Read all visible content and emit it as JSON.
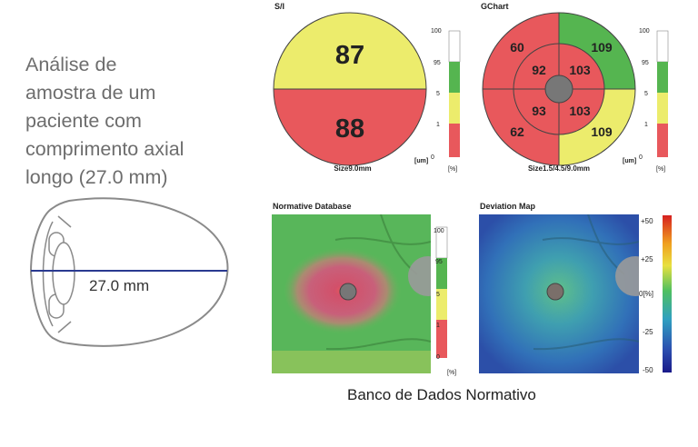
{
  "description": {
    "lines": [
      "Análise de",
      "amostra de um",
      "paciente com",
      "comprimento axial",
      "longo (27.0 mm)"
    ]
  },
  "eye_diagram": {
    "axial_length_label": "27.0 mm"
  },
  "si_panel": {
    "title": "S/I",
    "superior_value": "87",
    "inferior_value": "88",
    "size_label": "Size9.0mm",
    "superior_color": "#ecec6c",
    "inferior_color": "#e8585c"
  },
  "gchart_panel": {
    "title": "GChart",
    "outer_top_left": "60",
    "outer_top_right": "109",
    "outer_bottom_left": "62",
    "outer_bottom_right": "109",
    "inner_top_left": "92",
    "inner_top_right": "103",
    "inner_bottom_left": "93",
    "inner_bottom_right": "103",
    "size_label": "Size1.5/4.5/9.0mm"
  },
  "scale_bar": {
    "tick_labels": [
      "100",
      "95",
      "5",
      "1",
      "0"
    ],
    "unit_um": "[um]",
    "unit_um_zero": "0",
    "unit_percent": "[%]",
    "colors": {
      "white": "#ffffff",
      "green": "#55b550",
      "yellow": "#ecec6c",
      "red": "#e8585c"
    }
  },
  "normative_panel": {
    "title": "Normative Database"
  },
  "deviation_panel": {
    "title": "Deviation Map",
    "scale_labels": [
      "+50",
      "+25",
      "0[%]",
      "-25",
      "-50"
    ]
  },
  "caption": "Banco de Dados Normativo"
}
